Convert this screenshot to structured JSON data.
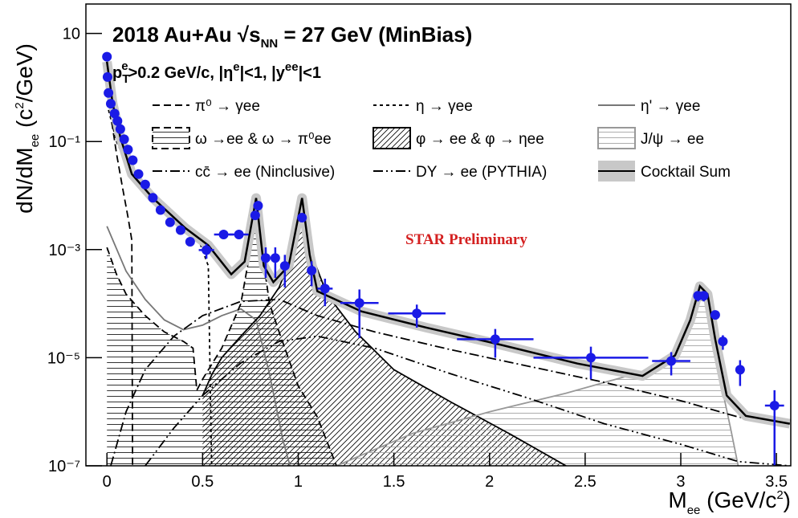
{
  "chart_data": {
    "type": "line",
    "title": [
      "2018 Au+Au  √s",
      "NN",
      " = 27 GeV (MinBias)"
    ],
    "subtitle": [
      "p",
      "T",
      "e",
      ">0.2 GeV/c, |η",
      "e",
      "|<1, |y",
      "ee",
      "|<1"
    ],
    "annotation": "STAR Preliminary",
    "x_label": [
      "M",
      "ee",
      " (GeV/c",
      "2",
      ")"
    ],
    "y_label": [
      "dN/dM",
      "ee",
      " (c",
      "2",
      "/GeV)"
    ],
    "xlim": [
      -0.11,
      3.575
    ],
    "xticks": [
      0,
      0.5,
      1,
      1.5,
      2,
      2.5,
      3,
      3.5
    ],
    "ylim": [
      1e-07,
      35
    ],
    "yscale": "log",
    "yticks": [
      {
        "value": 10,
        "label": "10"
      },
      {
        "value": 0.1,
        "label": "10⁻¹"
      },
      {
        "value": 0.001,
        "label": "10⁻³"
      },
      {
        "value": 1e-05,
        "label": "10⁻⁵"
      },
      {
        "value": 1e-07,
        "label": "10⁻⁷"
      }
    ],
    "series": [
      {
        "name": "π⁰ → γee",
        "color": "#000000",
        "line": "dashed",
        "x": [
          0,
          0.02,
          0.05,
          0.08,
          0.11,
          0.13,
          0.134
        ],
        "values": [
          2.5,
          0.3,
          0.06,
          0.015,
          0.004,
          0.0015,
          1e-07
        ]
      },
      {
        "name": "η → γee",
        "color": "#000000",
        "line": "dotted",
        "x": [
          0,
          0.05,
          0.1,
          0.2,
          0.3,
          0.4,
          0.48,
          0.53,
          0.547
        ],
        "values": [
          0.5,
          0.1,
          0.04,
          0.012,
          0.006,
          0.003,
          0.0015,
          0.0005,
          1e-07
        ]
      },
      {
        "name": "η' → γee",
        "color": "#777777",
        "line": "solid",
        "x": [
          0,
          0.1,
          0.2,
          0.3,
          0.4,
          0.5,
          0.6,
          0.7,
          0.78,
          0.85,
          0.92,
          0.957
        ],
        "values": [
          0.0027,
          0.0004,
          0.00012,
          5e-05,
          3.3e-05,
          4e-05,
          6e-05,
          8e-05,
          5e-05,
          5e-06,
          3e-07,
          1e-07
        ]
      },
      {
        "name": "ω →ee & ω → π⁰ee",
        "color": "#000000",
        "line": "dashed",
        "fill": "horizontal",
        "x": [
          0,
          0.05,
          0.1,
          0.2,
          0.3,
          0.4,
          0.45,
          0.47,
          0.5,
          0.6,
          0.7,
          0.75,
          0.78,
          0.81,
          0.85,
          0.9,
          1.0,
          1.1,
          1.2
        ],
        "values": [
          0.0011,
          0.00035,
          0.00015,
          6e-05,
          3e-05,
          2e-05,
          1.5e-05,
          2.5e-06,
          4e-06,
          1.5e-05,
          0.0001,
          0.001,
          0.009,
          0.001,
          0.0001,
          3e-05,
          3e-06,
          8e-07,
          1e-07
        ]
      },
      {
        "name": "φ → ee & φ → ηee",
        "color": "#000000",
        "line": "solid",
        "fill": "diagonal",
        "x": [
          0.5,
          0.55,
          0.6,
          0.7,
          0.8,
          0.9,
          0.98,
          1.02,
          1.06,
          1.15,
          1.3,
          1.5,
          1.8,
          2.1,
          2.4
        ],
        "values": [
          2e-06,
          5e-06,
          1e-05,
          2.5e-05,
          6e-05,
          0.0002,
          0.001,
          0.009,
          0.001,
          0.00015,
          3e-05,
          6e-06,
          1.5e-06,
          4e-07,
          1e-07
        ]
      },
      {
        "name": "J/ψ → ee",
        "color": "#999999",
        "line": "solid",
        "fill": "horizontal",
        "x": [
          1.2,
          1.6,
          2.0,
          2.4,
          2.8,
          3.0,
          3.07,
          3.1,
          3.13,
          3.2,
          3.26,
          3.3
        ],
        "values": [
          1e-07,
          4e-07,
          1e-06,
          2.2e-06,
          5.5e-06,
          1.5e-05,
          0.0001,
          0.0002,
          0.0001,
          5e-06,
          5e-07,
          1e-07
        ]
      },
      {
        "name": "cc̄ → ee (Ninclusive)",
        "color": "#000000",
        "line": "dashdot",
        "x": [
          0.02,
          0.1,
          0.2,
          0.35,
          0.5,
          0.7,
          0.9,
          1.1,
          1.4,
          1.8,
          2.2,
          2.6,
          3.0,
          3.3,
          3.57
        ],
        "values": [
          1e-07,
          1e-06,
          6e-06,
          2.5e-05,
          6e-05,
          0.00011,
          0.00012,
          6e-05,
          3e-05,
          1.4e-05,
          7e-06,
          3.5e-06,
          1.6e-06,
          8e-07,
          6e-07
        ]
      },
      {
        "name": "DY → ee (PYTHIA)",
        "color": "#000000",
        "line": "dashdotdot",
        "x": [
          0.2,
          0.35,
          0.5,
          0.7,
          0.9,
          1.1,
          1.4,
          1.8,
          2.2,
          2.6,
          3.0,
          3.3,
          3.57
        ],
        "values": [
          1e-07,
          5e-07,
          2e-06,
          8e-06,
          2e-05,
          2.5e-05,
          1.5e-05,
          5e-06,
          1.8e-06,
          6e-07,
          2.5e-07,
          1.2e-07,
          1e-07
        ]
      },
      {
        "name": "Cocktail Sum",
        "color": "#000000",
        "line": "solid",
        "band_color": "#c8c8c8",
        "x": [
          0,
          0.03,
          0.07,
          0.13,
          0.24,
          0.41,
          0.53,
          0.65,
          0.72,
          0.78,
          0.82,
          0.87,
          0.95,
          1.02,
          1.06,
          1.1,
          1.33,
          1.67,
          2.04,
          2.46,
          2.8,
          2.97,
          3.05,
          3.1,
          3.14,
          3.18,
          3.24,
          3.34,
          3.57
        ],
        "values": [
          3,
          0.5,
          0.12,
          0.025,
          0.009,
          0.0025,
          0.0012,
          0.00035,
          0.0006,
          0.009,
          0.0005,
          0.00025,
          0.0005,
          0.009,
          0.0008,
          0.00017,
          7.2e-05,
          3.6e-05,
          1.8e-05,
          7.8e-06,
          4.6e-06,
          1.1e-05,
          5e-05,
          0.00021,
          0.00015,
          2.2e-05,
          2e-06,
          8.4e-07,
          6e-07
        ]
      }
    ],
    "points": {
      "color": "#1a1ae6",
      "x": [
        0.0,
        0.003,
        0.008,
        0.02,
        0.04,
        0.055,
        0.07,
        0.09,
        0.11,
        0.135,
        0.165,
        0.2,
        0.24,
        0.28,
        0.33,
        0.385,
        0.435,
        0.52,
        0.61,
        0.69,
        0.775,
        0.79,
        0.83,
        0.88,
        0.93,
        1.02,
        1.07,
        1.14,
        1.32,
        1.62,
        2.03,
        2.53,
        2.95,
        3.09,
        3.12,
        3.18,
        3.22,
        3.31,
        3.49
      ],
      "values": [
        3.7,
        1.56,
        0.79,
        0.5,
        0.33,
        0.24,
        0.17,
        0.11,
        0.071,
        0.045,
        0.025,
        0.016,
        0.0091,
        0.0054,
        0.0032,
        0.0023,
        0.0014,
        0.00098,
        0.0019,
        0.0019,
        0.0043,
        0.0065,
        0.0007,
        0.0007,
        0.0005,
        0.0039,
        0.00041,
        0.00019,
        0.000103,
        6.6e-05,
        2.2e-05,
        1e-05,
        8.7e-06,
        0.00014,
        0.00014,
        6.2e-05,
        2e-05,
        6e-06,
        1.3e-06
      ],
      "xerr": [
        0,
        0,
        0,
        0,
        0,
        0,
        0,
        0,
        0,
        0,
        0.01,
        0.01,
        0.02,
        0.02,
        0.02,
        0.02,
        0.02,
        0.04,
        0.05,
        0.05,
        0.01,
        0.01,
        0.02,
        0.02,
        0.02,
        0.01,
        0.02,
        0.04,
        0.1,
        0.15,
        0.2,
        0.3,
        0.1,
        0.02,
        0.02,
        0.02,
        0.02,
        0.02,
        0.05
      ],
      "yerr": [
        0,
        0,
        0,
        0,
        0,
        0,
        0,
        0,
        0,
        0,
        0,
        0,
        0,
        0,
        0,
        0,
        0.0002,
        0.0003,
        0.0003,
        0.0003,
        0.0005,
        0.001,
        0.0004,
        0.0004,
        0.0003,
        0.0005,
        0.0002,
        0.0001,
        8e-05,
        3e-05,
        1.2e-05,
        6e-06,
        4e-06,
        3e-05,
        3e-05,
        1e-05,
        6e-06,
        3e-06,
        1.2e-06
      ]
    }
  }
}
